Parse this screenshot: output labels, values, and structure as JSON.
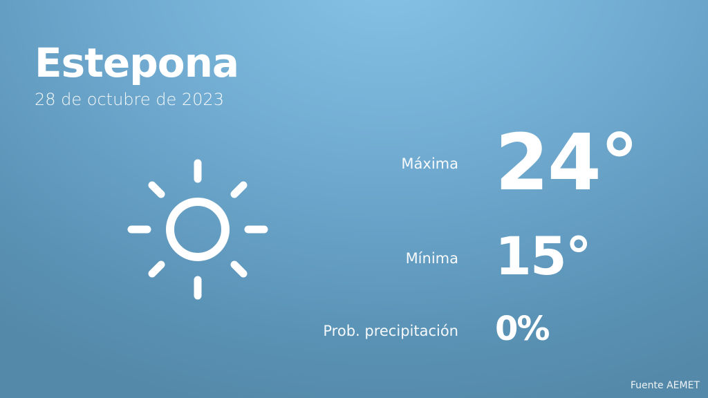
{
  "location": "Estepona",
  "date": "28 de octubre de 2023",
  "weather_icon": "sun-icon",
  "max": {
    "label": "Máxima",
    "value": "24°"
  },
  "min": {
    "label": "Mínima",
    "value": "15°"
  },
  "precipitation": {
    "label": "Prob. precipitación",
    "value": "0%"
  },
  "source": "Fuente AEMET",
  "colors": {
    "background_top": "#86c3e6",
    "background_bottom": "#5589a9",
    "text": "#ffffff"
  }
}
